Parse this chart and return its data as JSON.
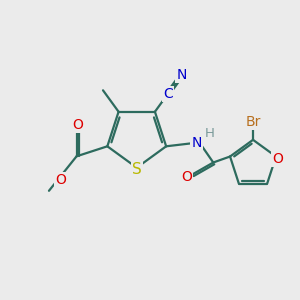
{
  "bg_color": "#ebebeb",
  "bond_color": "#2d6b5e",
  "bond_width": 1.6,
  "atom_colors": {
    "S": "#b8b800",
    "O": "#dd0000",
    "N": "#0000cc",
    "CN": "#0000cc",
    "Br": "#b87020",
    "H": "#7a9a9a",
    "C": "#000000",
    "bond": "#2d6b5e"
  },
  "font_size_atom": 10,
  "font_size_small": 8.5
}
